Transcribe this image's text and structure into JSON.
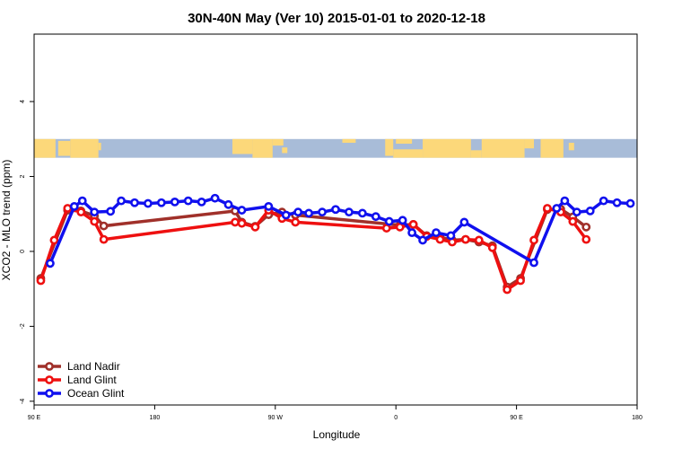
{
  "chart_data": {
    "type": "line",
    "title": "30N-40N May (Ver 10)   2015-01-01 to 2020-12-18",
    "xlabel": "Longitude",
    "ylabel": "XCO2 - MLO trend (ppm)",
    "xlim": [
      0,
      450
    ],
    "ylim": [
      -4.1,
      5.8
    ],
    "x_ticks": [
      {
        "value": 0,
        "label": "90 E"
      },
      {
        "value": 90,
        "label": "180"
      },
      {
        "value": 180,
        "label": "90 W"
      },
      {
        "value": 270,
        "label": "0"
      },
      {
        "value": 360,
        "label": "90 E"
      },
      {
        "value": 450,
        "label": "180"
      }
    ],
    "y_ticks": [
      {
        "value": -4,
        "label": "-4"
      },
      {
        "value": -2,
        "label": "-2"
      },
      {
        "value": 0,
        "label": "0"
      },
      {
        "value": 2,
        "label": "2"
      },
      {
        "value": 4,
        "label": "4"
      }
    ],
    "grid": false,
    "legend_position": "bottom-left",
    "map_band": {
      "y_range": [
        2.5,
        3.0
      ],
      "land_color": "#fcd87a",
      "ocean_color": "#a8bcd8"
    },
    "series": [
      {
        "name": "Land Nadir",
        "color": "#a0302a",
        "x": [
          5,
          25,
          35,
          45,
          52,
          150,
          155,
          165,
          175,
          185,
          195,
          273,
          283,
          293,
          303,
          312,
          322,
          332,
          342,
          353,
          363,
          383,
          393,
          402,
          412
        ],
        "y": [
          -0.72,
          1.1,
          1.08,
          0.95,
          0.68,
          1.08,
          0.78,
          0.67,
          0.98,
          1.05,
          0.97,
          0.7,
          0.72,
          0.42,
          0.38,
          0.3,
          0.32,
          0.25,
          0.15,
          -0.95,
          -0.72,
          1.12,
          1.13,
          0.92,
          0.65
        ]
      },
      {
        "name": "Land Glint",
        "color": "#ee1010",
        "x": [
          5,
          15,
          25,
          35,
          45,
          52,
          150,
          155,
          165,
          175,
          185,
          195,
          263,
          273,
          283,
          293,
          303,
          312,
          322,
          332,
          342,
          353,
          363,
          373,
          383,
          393,
          402,
          412
        ],
        "y": [
          -0.78,
          0.3,
          1.15,
          1.05,
          0.8,
          0.32,
          0.78,
          0.75,
          0.65,
          1.1,
          0.88,
          0.78,
          0.62,
          0.65,
          0.72,
          0.4,
          0.32,
          0.25,
          0.32,
          0.3,
          0.1,
          -1.02,
          -0.78,
          0.3,
          1.15,
          1.05,
          0.8,
          0.32
        ]
      },
      {
        "name": "Ocean Glint",
        "color": "#1010ee",
        "x": [
          12,
          30,
          36,
          45,
          57,
          65,
          75,
          85,
          95,
          105,
          115,
          125,
          135,
          145,
          155,
          175,
          188,
          197,
          205,
          215,
          225,
          235,
          245,
          255,
          265,
          275,
          282,
          290,
          300,
          311,
          321,
          373,
          390,
          396,
          405,
          415,
          425,
          435,
          445
        ],
        "y": [
          -0.32,
          1.2,
          1.35,
          1.05,
          1.07,
          1.35,
          1.3,
          1.28,
          1.3,
          1.32,
          1.35,
          1.32,
          1.42,
          1.25,
          1.1,
          1.2,
          0.97,
          1.05,
          1.02,
          1.05,
          1.12,
          1.05,
          1.02,
          0.93,
          0.8,
          0.83,
          0.5,
          0.3,
          0.5,
          0.42,
          0.78,
          -0.3,
          1.15,
          1.35,
          1.05,
          1.08,
          1.35,
          1.3,
          1.28
        ]
      }
    ]
  }
}
